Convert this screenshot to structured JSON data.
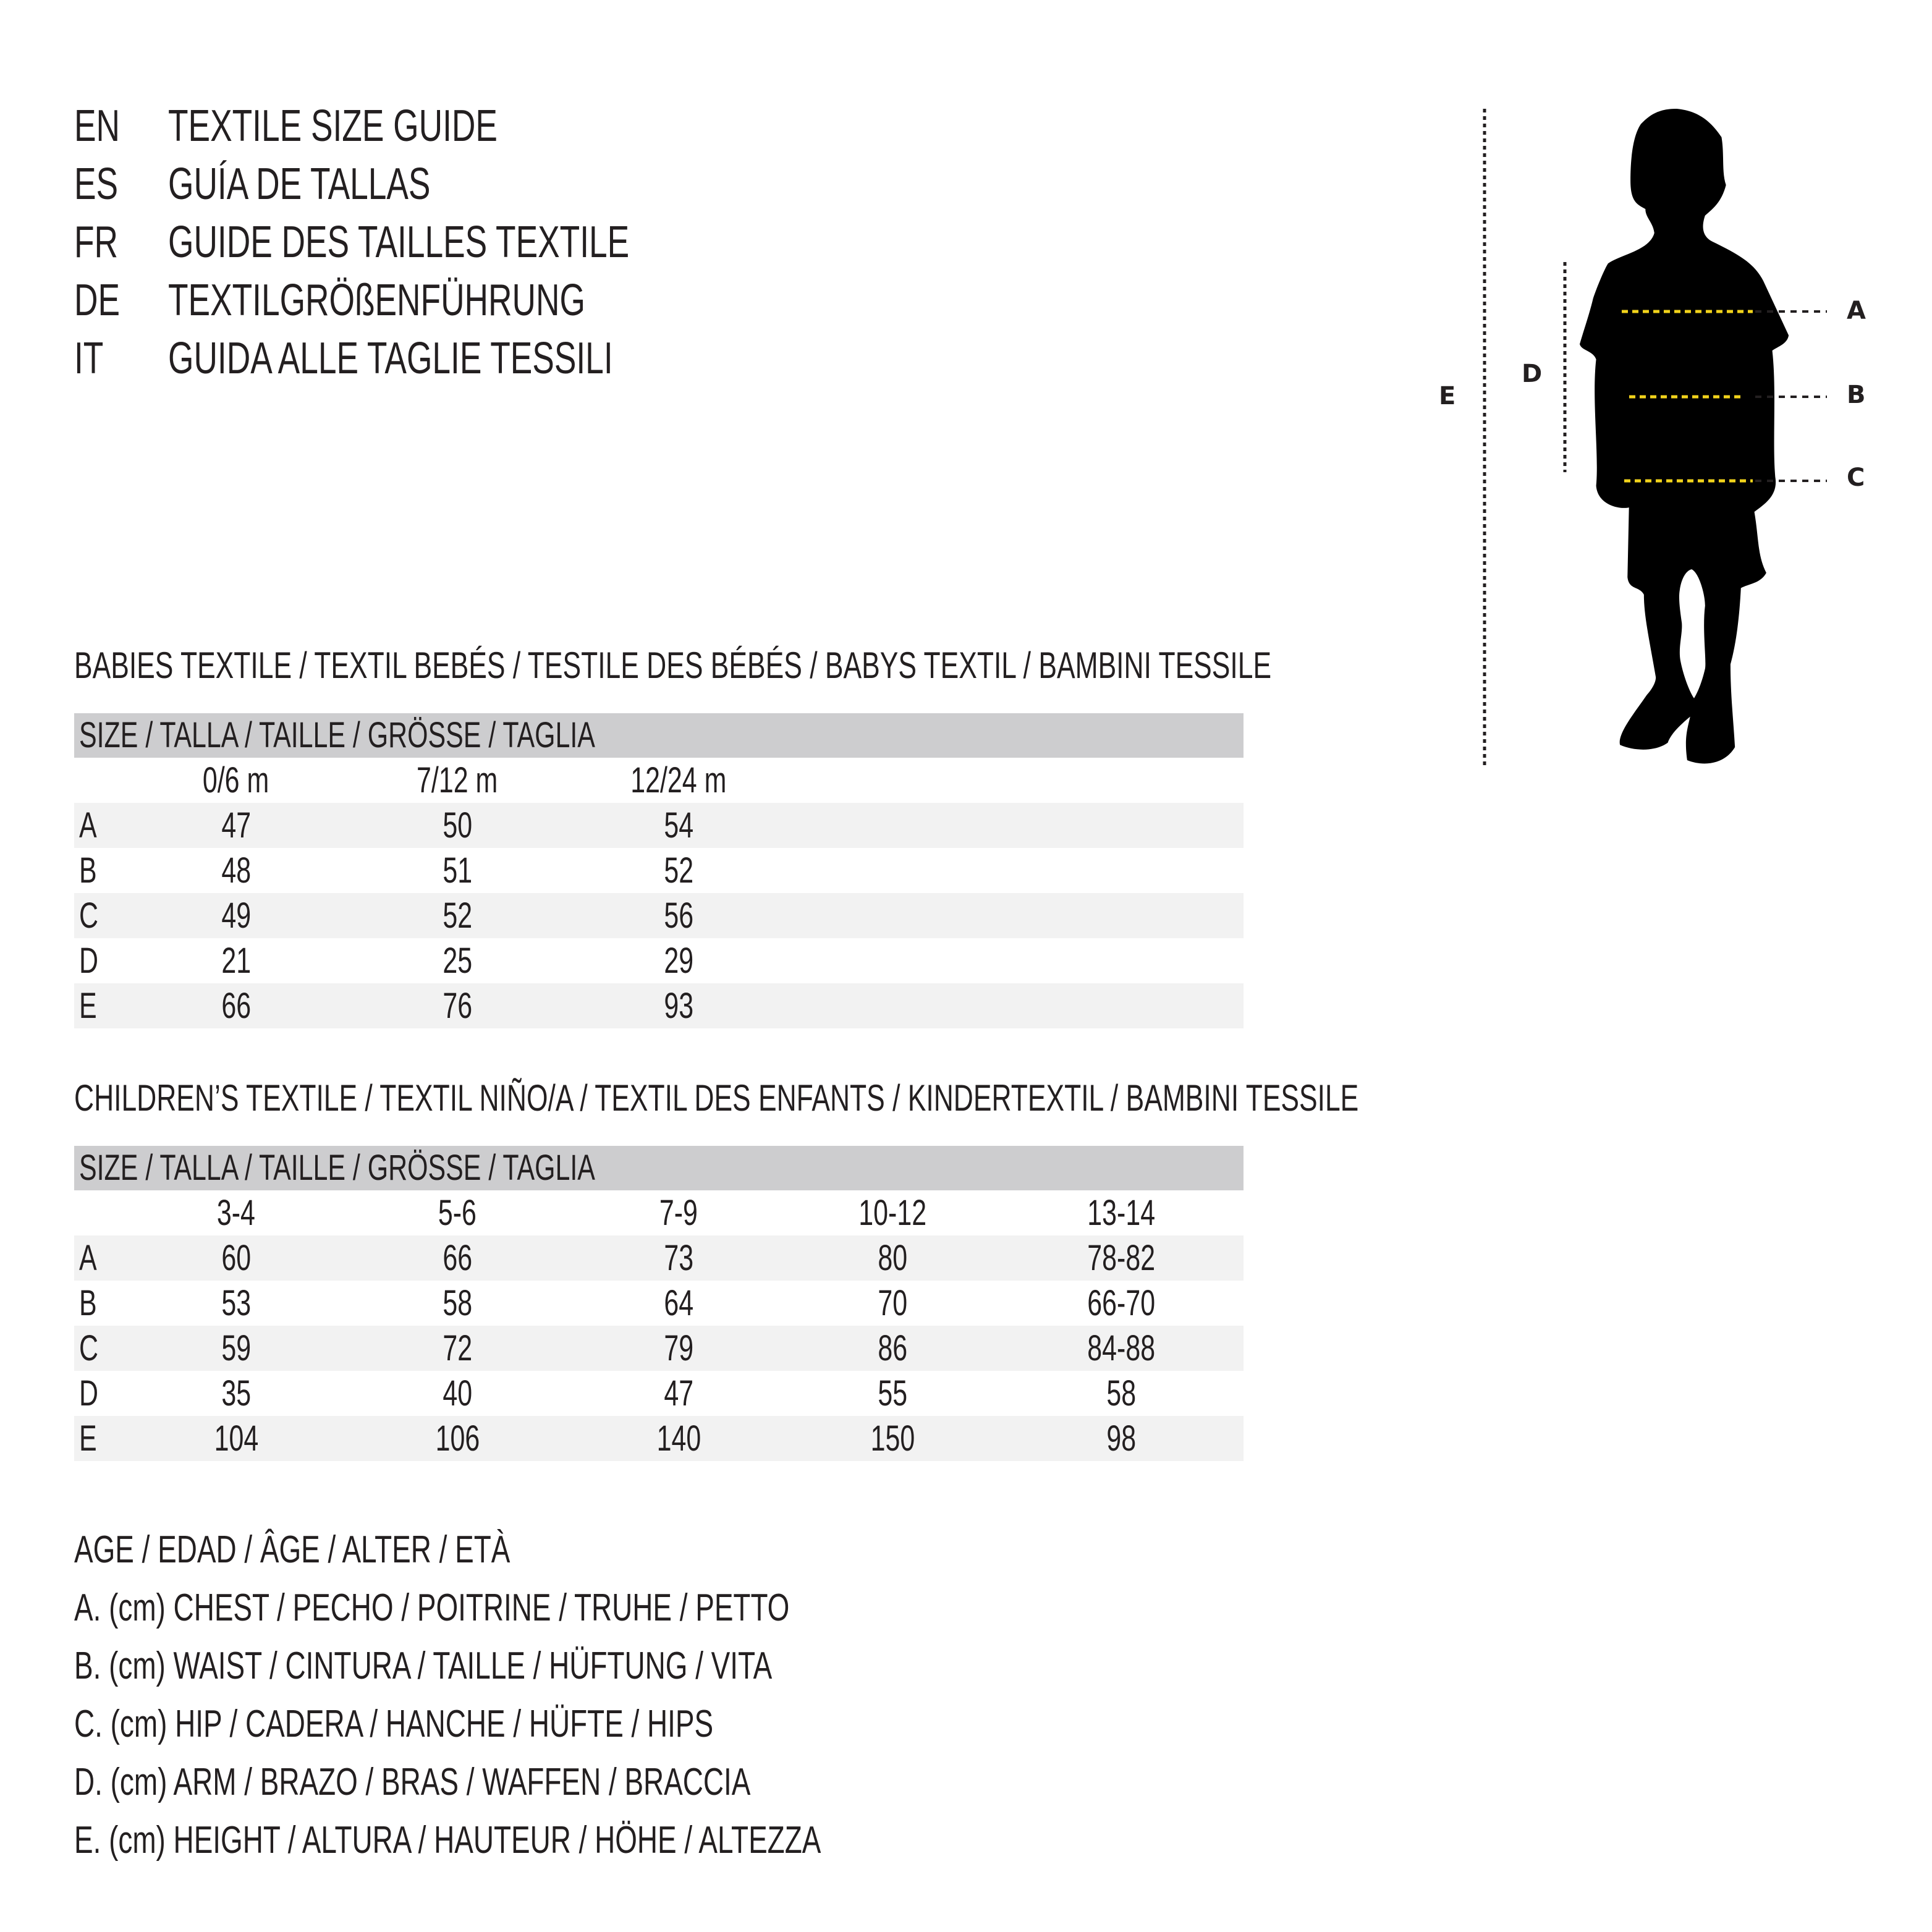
{
  "titles": [
    {
      "code": "EN",
      "text": "TEXTILE SIZE GUIDE"
    },
    {
      "code": "ES",
      "text": "GUÍA DE TALLAS"
    },
    {
      "code": "FR",
      "text": "GUIDE DES TAILLES TEXTILE"
    },
    {
      "code": "DE",
      "text": "TEXTILGRÖßENFÜHRUNG"
    },
    {
      "code": "IT",
      "text": "GUIDA ALLE TAGLIE TESSILI"
    }
  ],
  "figure": {
    "labels": {
      "A": "A",
      "B": "B",
      "C": "C",
      "D": "D",
      "E": "E"
    },
    "colors": {
      "silhouette": "#000000",
      "measure_line": "#f2d31b",
      "guide_line": "#231f20"
    }
  },
  "tables": [
    {
      "title": "BABIES TEXTILE / TEXTIL BEBÉS / TESTILE DES BÉBÉS / BABYS TEXTIL / BAMBINI TESSILE",
      "header": "SIZE / TALLA / TAILLE / GRÖSSE / TAGLIA",
      "columns": [
        "0/6 m",
        "7/12 m",
        "12/24 m"
      ],
      "rows": [
        {
          "label": "A",
          "values": [
            "47",
            "50",
            "54"
          ]
        },
        {
          "label": "B",
          "values": [
            "48",
            "51",
            "52"
          ]
        },
        {
          "label": "C",
          "values": [
            "49",
            "52",
            "56"
          ]
        },
        {
          "label": "D",
          "values": [
            "21",
            "25",
            "29"
          ]
        },
        {
          "label": "E",
          "values": [
            "66",
            "76",
            "93"
          ]
        }
      ]
    },
    {
      "title": "CHILDREN’S TEXTILE / TEXTIL NIÑO/A / TEXTIL DES ENFANTS / KINDERTEXTIL / BAMBINI TESSILE",
      "header": "SIZE / TALLA / TAILLE / GRÖSSE / TAGLIA",
      "columns": [
        "3-4",
        "5-6",
        "7-9",
        "10-12",
        "13-14"
      ],
      "rows": [
        {
          "label": "A",
          "values": [
            "60",
            "66",
            "73",
            "80",
            "78-82"
          ]
        },
        {
          "label": "B",
          "values": [
            "53",
            "58",
            "64",
            "70",
            "66-70"
          ]
        },
        {
          "label": "C",
          "values": [
            "59",
            "72",
            "79",
            "86",
            "84-88"
          ]
        },
        {
          "label": "D",
          "values": [
            "35",
            "40",
            "47",
            "55",
            "58"
          ]
        },
        {
          "label": "E",
          "values": [
            "104",
            "106",
            "140",
            "150",
            "98"
          ]
        }
      ]
    }
  ],
  "legend": [
    "AGE / EDAD / ÂGE / ALTER / ETÀ",
    "A. (cm) CHEST / PECHO / POITRINE / TRUHE / PETTO",
    "B. (cm) WAIST / CINTURA / TAILLE / HÜFTUNG / VITA",
    "C. (cm) HIP / CADERA / HANCHE / HÜFTE / HIPS",
    "D. (cm) ARM / BRAZO / BRAS / WAFFEN / BRACCIA",
    "E. (cm) HEIGHT / ALTURA / HAUTEUR / HÖHE / ALTEZZA"
  ]
}
